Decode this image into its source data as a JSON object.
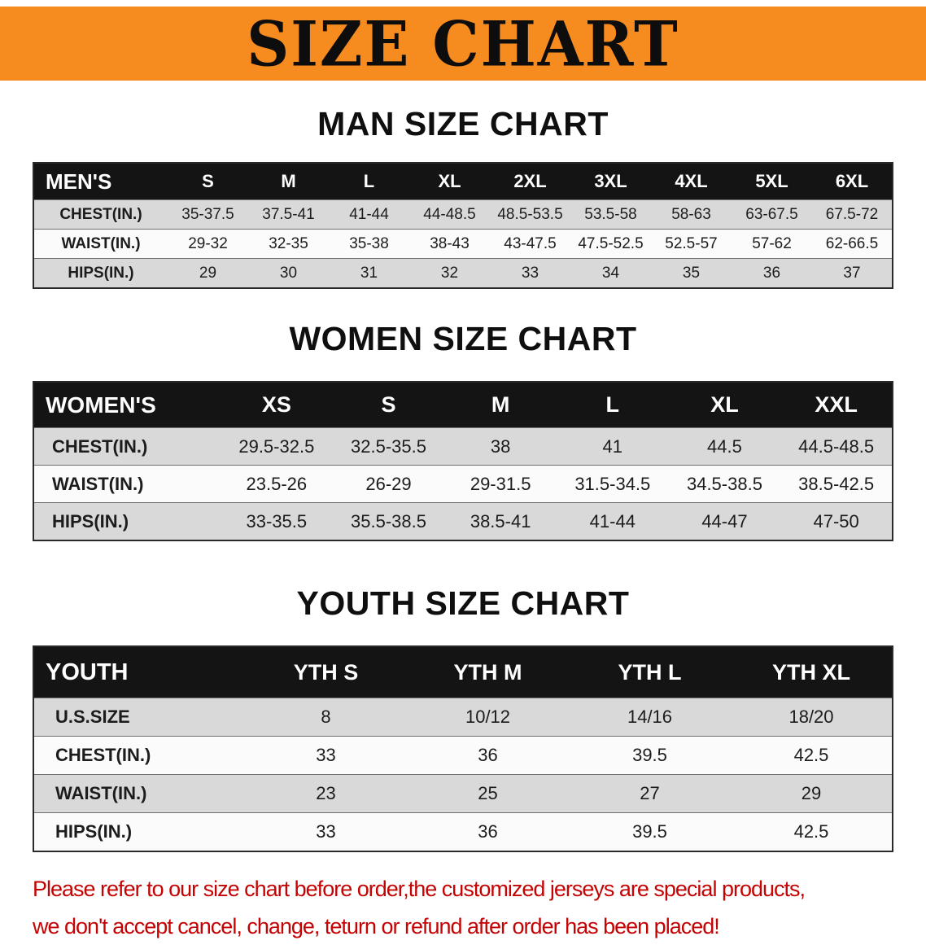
{
  "banner": {
    "title": "SIZE CHART"
  },
  "sections": [
    {
      "id": "men",
      "heading": "MAN SIZE CHART",
      "table": {
        "header": [
          "MEN'S",
          "S",
          "M",
          "L",
          "XL",
          "2XL",
          "3XL",
          "4XL",
          "5XL",
          "6XL"
        ],
        "rows": [
          {
            "label": "CHEST(IN.)",
            "values": [
              "35-37.5",
              "37.5-41",
              "41-44",
              "44-48.5",
              "48.5-53.5",
              "53.5-58",
              "58-63",
              "63-67.5",
              "67.5-72"
            ]
          },
          {
            "label": "WAIST(IN.)",
            "values": [
              "29-32",
              "32-35",
              "35-38",
              "38-43",
              "43-47.5",
              "47.5-52.5",
              "52.5-57",
              "57-62",
              "62-66.5"
            ]
          },
          {
            "label": "HIPS(IN.)",
            "values": [
              "29",
              "30",
              "31",
              "32",
              "33",
              "34",
              "35",
              "36",
              "37"
            ]
          }
        ]
      }
    },
    {
      "id": "women",
      "heading": "WOMEN SIZE CHART",
      "table": {
        "header": [
          "WOMEN'S",
          "XS",
          "S",
          "M",
          "L",
          "XL",
          "XXL"
        ],
        "rows": [
          {
            "label": "CHEST(IN.)",
            "values": [
              "29.5-32.5",
              "32.5-35.5",
              "38",
              "41",
              "44.5",
              "44.5-48.5"
            ]
          },
          {
            "label": "WAIST(IN.)",
            "values": [
              "23.5-26",
              "26-29",
              "29-31.5",
              "31.5-34.5",
              "34.5-38.5",
              "38.5-42.5"
            ]
          },
          {
            "label": "HIPS(IN.)",
            "values": [
              "33-35.5",
              "35.5-38.5",
              "38.5-41",
              "41-44",
              "44-47",
              "47-50"
            ]
          }
        ]
      }
    },
    {
      "id": "youth",
      "heading": "YOUTH SIZE CHART",
      "table": {
        "header": [
          "YOUTH",
          "YTH S",
          "YTH M",
          "YTH L",
          "YTH XL"
        ],
        "rows": [
          {
            "label": "U.S.SIZE",
            "values": [
              "8",
              "10/12",
              "14/16",
              "18/20"
            ]
          },
          {
            "label": "CHEST(IN.)",
            "values": [
              "33",
              "36",
              "39.5",
              "42.5"
            ]
          },
          {
            "label": "WAIST(IN.)",
            "values": [
              "23",
              "25",
              "27",
              "29"
            ]
          },
          {
            "label": "HIPS(IN.)",
            "values": [
              "33",
              "36",
              "39.5",
              "42.5"
            ]
          }
        ]
      }
    }
  ],
  "footer": {
    "lines": [
      "Please refer to our size chart before order,the customized jerseys are special products,",
      "we don't accept cancel, change, teturn or refund after order has been placed!"
    ]
  },
  "colors": {
    "banner_bg": "#F68B1F",
    "table_header_bg": "#141414",
    "row_stripe_gray": "#D9D9D9",
    "note_red": "#C40404"
  }
}
